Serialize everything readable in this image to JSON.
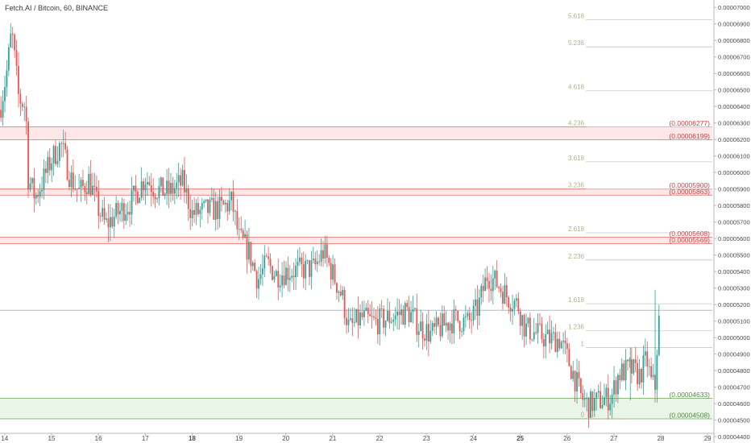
{
  "header": {
    "title": "Fetch.AI / Bitcoin, 60, BINANCE"
  },
  "colors": {
    "up": "#26a69a",
    "down": "#ef5350",
    "resistance_fill": "#fde7e7",
    "resistance_line": "#e06a6a",
    "support_fill": "#e9f5e7",
    "support_line": "#6da55c",
    "fib_line": "#c8c8c8",
    "fib_label": "#b0b08a",
    "price_line": "#9fc0dc",
    "axis_text": "#4a4a4a"
  },
  "chart_data": {
    "type": "candlestick",
    "title": "Fetch.AI / Bitcoin, 60, BINANCE",
    "x_ticks": [
      {
        "day": 14,
        "label": "14",
        "bold": false
      },
      {
        "day": 15,
        "label": "15",
        "bold": false
      },
      {
        "day": 16,
        "label": "16",
        "bold": false
      },
      {
        "day": 17,
        "label": "17",
        "bold": false
      },
      {
        "day": 18,
        "label": "18",
        "bold": true
      },
      {
        "day": 19,
        "label": "19",
        "bold": false
      },
      {
        "day": 20,
        "label": "20",
        "bold": false
      },
      {
        "day": 21,
        "label": "21",
        "bold": false
      },
      {
        "day": 22,
        "label": "22",
        "bold": false
      },
      {
        "day": 23,
        "label": "23",
        "bold": false
      },
      {
        "day": 24,
        "label": "24",
        "bold": false
      },
      {
        "day": 25,
        "label": "25",
        "bold": true
      },
      {
        "day": 26,
        "label": "26",
        "bold": false
      },
      {
        "day": 27,
        "label": "27",
        "bold": false
      },
      {
        "day": 28,
        "label": "28",
        "bold": false
      },
      {
        "day": 29,
        "label": "29",
        "bold": false
      }
    ],
    "y_ticks": [
      {
        "value": 4.4e-05,
        "label": "0.00004400"
      },
      {
        "value": 4.5e-05,
        "label": "0.00004500"
      },
      {
        "value": 4.6e-05,
        "label": "0.00004600"
      },
      {
        "value": 4.7e-05,
        "label": "0.00004700"
      },
      {
        "value": 4.8e-05,
        "label": "0.00004800"
      },
      {
        "value": 4.9e-05,
        "label": "0.00004900"
      },
      {
        "value": 5e-05,
        "label": "0.00005000"
      },
      {
        "value": 5.1e-05,
        "label": "0.00005100"
      },
      {
        "value": 5.2e-05,
        "label": "0.00005200"
      },
      {
        "value": 5.3e-05,
        "label": "0.00005300"
      },
      {
        "value": 5.4e-05,
        "label": "0.00005400"
      },
      {
        "value": 5.5e-05,
        "label": "0.00005500"
      },
      {
        "value": 5.6e-05,
        "label": "0.00005600"
      },
      {
        "value": 5.7e-05,
        "label": "0.00005700"
      },
      {
        "value": 5.8e-05,
        "label": "0.00005800"
      },
      {
        "value": 5.9e-05,
        "label": "0.00005900"
      },
      {
        "value": 6e-05,
        "label": "0.00006000"
      },
      {
        "value": 6.1e-05,
        "label": "0.00006100"
      },
      {
        "value": 6.2e-05,
        "label": "0.00006200"
      },
      {
        "value": 6.3e-05,
        "label": "0.00006300"
      },
      {
        "value": 6.4e-05,
        "label": "0.00006400"
      },
      {
        "value": 6.5e-05,
        "label": "0.00006500"
      },
      {
        "value": 6.6e-05,
        "label": "0.00006600"
      },
      {
        "value": 6.7e-05,
        "label": "0.00006700"
      },
      {
        "value": 6.8e-05,
        "label": "0.00006800"
      },
      {
        "value": 6.9e-05,
        "label": "0.00006900"
      },
      {
        "value": 7e-05,
        "label": "0.00007000"
      }
    ],
    "x_range_days": [
      13.9,
      29.1
    ],
    "y_range": [
      4.42e-05,
      7.045e-05
    ],
    "fib_levels": [
      {
        "label": "0",
        "value": 4.51e-05
      },
      {
        "label": "1",
        "value": 4.94e-05
      },
      {
        "label": "1.236",
        "value": 5.041e-05
      },
      {
        "label": "1.618",
        "value": 5.205e-05
      },
      {
        "label": "2.236",
        "value": 5.47e-05
      },
      {
        "label": "2.618",
        "value": 5.635e-05
      },
      {
        "label": "3.236",
        "value": 5.9e-05
      },
      {
        "label": "3.618",
        "value": 6.065e-05
      },
      {
        "label": "4.236",
        "value": 6.277e-05
      },
      {
        "label": "4.618",
        "value": 6.495e-05
      },
      {
        "label": "5.236",
        "value": 6.761e-05
      },
      {
        "label": "5.618",
        "value": 6.925e-05
      }
    ],
    "zones": [
      {
        "kind": "resistance",
        "low": 6.199e-05,
        "high": 6.277e-05,
        "labels": [
          "(0.00006277)",
          "(0.00006199)"
        ]
      },
      {
        "kind": "resistance",
        "low": 5.863e-05,
        "high": 5.9e-05,
        "labels": [
          "(0.00005900)",
          "(0.00005863)"
        ]
      },
      {
        "kind": "resistance",
        "low": 5.569e-05,
        "high": 5.608e-05,
        "labels": [
          "(0.00005608)",
          "(0.00005569)"
        ]
      },
      {
        "kind": "support",
        "low": 4.508e-05,
        "high": 4.633e-05,
        "labels": [
          "(0.00004633)",
          "(0.00004508)"
        ]
      }
    ],
    "price_line": 5.165e-05,
    "path": [
      [
        13.9,
        6.38e-05
      ],
      [
        14.05,
        6.62e-05
      ],
      [
        14.15,
        6.86e-05
      ],
      [
        14.3,
        6.45e-05
      ],
      [
        14.45,
        6.4e-05
      ],
      [
        14.5,
        5.97e-05
      ],
      [
        14.65,
        5.85e-05
      ],
      [
        14.8,
        5.94e-05
      ],
      [
        15.0,
        6.08e-05
      ],
      [
        15.2,
        6.17e-05
      ],
      [
        15.4,
        5.97e-05
      ],
      [
        15.6,
        5.88e-05
      ],
      [
        15.8,
        5.96e-05
      ],
      [
        16.0,
        5.78e-05
      ],
      [
        16.15,
        5.68e-05
      ],
      [
        16.4,
        5.75e-05
      ],
      [
        16.7,
        5.82e-05
      ],
      [
        17.0,
        5.97e-05
      ],
      [
        17.2,
        5.9e-05
      ],
      [
        17.5,
        5.88e-05
      ],
      [
        17.8,
        5.94e-05
      ],
      [
        18.0,
        5.75e-05
      ],
      [
        18.3,
        5.77e-05
      ],
      [
        18.6,
        5.78e-05
      ],
      [
        18.85,
        5.82e-05
      ],
      [
        19.0,
        5.6e-05
      ],
      [
        19.2,
        5.53e-05
      ],
      [
        19.4,
        5.35e-05
      ],
      [
        19.6,
        5.45e-05
      ],
      [
        19.8,
        5.38e-05
      ],
      [
        20.0,
        5.4e-05
      ],
      [
        20.3,
        5.41e-05
      ],
      [
        20.6,
        5.42e-05
      ],
      [
        20.8,
        5.52e-05
      ],
      [
        20.95,
        5.42e-05
      ],
      [
        21.2,
        5.25e-05
      ],
      [
        21.35,
        5.05e-05
      ],
      [
        21.6,
        5.12e-05
      ],
      [
        21.9,
        5.09e-05
      ],
      [
        22.2,
        5.12e-05
      ],
      [
        22.6,
        5.16e-05
      ],
      [
        22.85,
        5.07e-05
      ],
      [
        23.1,
        5.02e-05
      ],
      [
        23.4,
        5.08e-05
      ],
      [
        23.6,
        5.11e-05
      ],
      [
        23.9,
        5.09e-05
      ],
      [
        24.1,
        5.18e-05
      ],
      [
        24.3,
        5.38e-05
      ],
      [
        24.5,
        5.33e-05
      ],
      [
        24.75,
        5.24e-05
      ],
      [
        24.95,
        5.2e-05
      ],
      [
        25.1,
        5.06e-05
      ],
      [
        25.3,
        5.03e-05
      ],
      [
        25.6,
        4.99e-05
      ],
      [
        25.85,
        4.99e-05
      ],
      [
        26.0,
        4.88e-05
      ],
      [
        26.15,
        4.77e-05
      ],
      [
        26.3,
        4.64e-05
      ],
      [
        26.45,
        4.59e-05
      ],
      [
        26.7,
        4.62e-05
      ],
      [
        26.95,
        4.64e-05
      ],
      [
        27.1,
        4.78e-05
      ],
      [
        27.35,
        4.81e-05
      ],
      [
        27.55,
        4.77e-05
      ],
      [
        27.7,
        4.87e-05
      ],
      [
        27.8,
        4.72e-05
      ],
      [
        27.9,
        4.7e-05
      ],
      [
        27.93,
        5.06e-05
      ],
      [
        28.0,
        5.15e-05
      ]
    ]
  }
}
